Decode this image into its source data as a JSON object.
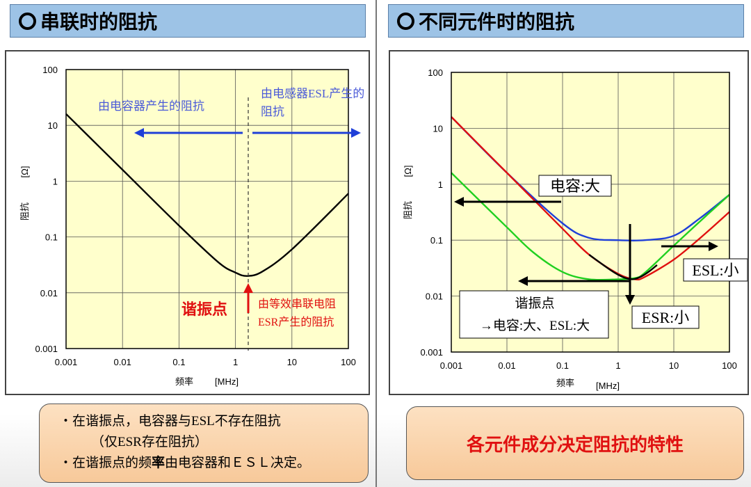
{
  "left": {
    "header": "串联时的阻抗",
    "annotations": {
      "cap_region": "由电容器产生的阻抗",
      "esl_line1": "由电感器ESL产生的",
      "esl_line2": "阻抗",
      "resonance": "谐振点",
      "esr_line1": "由等效串联电阻",
      "esr_line2": "ESR产生的阻抗"
    },
    "note": {
      "line1": "・在谐振点，电容器与ESL不存在阻抗",
      "line2": "（仅ESR存在阻抗）",
      "line3_a": "・在谐振点的频",
      "line3_b": "率",
      "line3_c": "由电容器和ＥＳＬ决定。"
    }
  },
  "right": {
    "header": "不同元件时的阻抗",
    "annotations": {
      "cap_big": "电容:大",
      "esl_small": "ESL:小",
      "esr_small": "ESR:小",
      "resonance_box_title": "谐振点",
      "resonance_box_text": "→电容:大、ESL:大"
    },
    "note": "各元件成分决定阻抗的特性"
  },
  "colors": {
    "header_bg": "#9dc3e6",
    "plot_bg": "#ffffcc",
    "arrow_blue": "#1f3fd8",
    "text_blue": "#4a5ad8",
    "red": "#e01010",
    "green": "#20d020"
  },
  "chart_data": [
    {
      "type": "line",
      "xscale": "log",
      "yscale": "log",
      "xlim": [
        0.001,
        100
      ],
      "ylim": [
        0.001,
        100
      ],
      "xticks": [
        "0.001",
        "0.01",
        "0.1",
        "1",
        "10",
        "100"
      ],
      "yticks": [
        "0.001",
        "0.01",
        "0.1",
        "1",
        "10",
        "100"
      ],
      "xlabel": "频率",
      "xunit": "[MHz]",
      "ylabel": "阻抗",
      "yunit": "[Ω]",
      "series": [
        {
          "color": "#000000",
          "x": [
            0.001,
            0.01,
            0.1,
            0.5,
            1,
            1.6,
            3,
            10,
            100
          ],
          "y": [
            16,
            1.6,
            0.16,
            0.035,
            0.023,
            0.02,
            0.024,
            0.06,
            0.6
          ]
        }
      ]
    },
    {
      "type": "line",
      "xscale": "log",
      "yscale": "log",
      "xlim": [
        0.001,
        100
      ],
      "ylim": [
        0.001,
        100
      ],
      "xticks": [
        "0.001",
        "0.01",
        "0.1",
        "1",
        "10",
        "100"
      ],
      "yticks": [
        "0.001",
        "0.01",
        "0.1",
        "1",
        "10",
        "100"
      ],
      "xlabel": "频率",
      "xunit": "[MHz]",
      "ylabel": "阻抗",
      "yunit": "[Ω]",
      "series": [
        {
          "color": "#1f3fd8",
          "x": [
            0.001,
            0.01,
            0.1,
            0.3,
            1,
            3,
            10,
            30,
            100
          ],
          "y": [
            16,
            1.6,
            0.2,
            0.11,
            0.1,
            0.1,
            0.12,
            0.25,
            0.65
          ]
        },
        {
          "color": "#e01010",
          "x": [
            0.001,
            0.01,
            0.1,
            0.3,
            1,
            2,
            3,
            10,
            30,
            100
          ],
          "y": [
            16,
            1.6,
            0.16,
            0.055,
            0.025,
            0.02,
            0.022,
            0.045,
            0.11,
            0.32
          ]
        },
        {
          "color": "#20d020",
          "x": [
            0.001,
            0.01,
            0.03,
            0.1,
            0.3,
            1,
            2,
            3,
            10,
            30,
            100
          ],
          "y": [
            1.6,
            0.17,
            0.06,
            0.027,
            0.02,
            0.02,
            0.021,
            0.026,
            0.08,
            0.22,
            0.65
          ]
        },
        {
          "color": "#000000",
          "x": [
            0.3,
            0.7,
            1.2,
            1.8,
            2.5,
            3.5,
            5
          ],
          "y": [
            0.055,
            0.03,
            0.022,
            0.02,
            0.022,
            0.027,
            0.036
          ]
        }
      ]
    }
  ]
}
